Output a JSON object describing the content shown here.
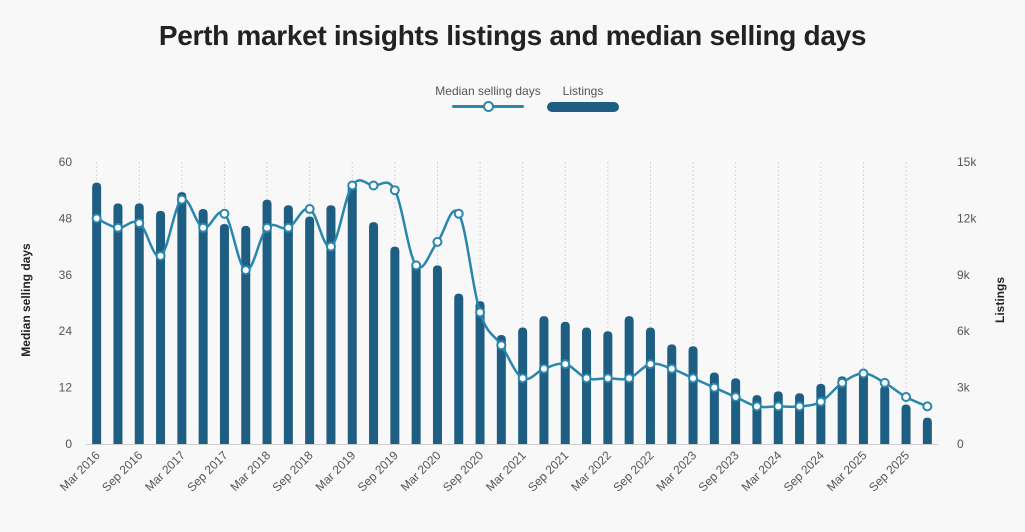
{
  "chart_data": {
    "type": "bar+line",
    "title": "Perth market insights listings and median selling days",
    "legend": [
      {
        "name": "Median selling days",
        "symbol": "line",
        "color": "#2a86ac"
      },
      {
        "name": "Listings",
        "symbol": "bar",
        "color": "#1d5e82"
      }
    ],
    "y_left": {
      "label": "Median selling days",
      "min": 0,
      "max": 60,
      "ticks": [
        "0",
        "12",
        "24",
        "36",
        "48",
        "60"
      ]
    },
    "y_right": {
      "label": "Listings",
      "min": 0,
      "max": 15000,
      "ticks": [
        "0",
        "3k",
        "6k",
        "9k",
        "12k",
        "15k"
      ]
    },
    "x_tick_labels": [
      "Mar 2016",
      "Sep 2016",
      "Mar 2017",
      "Sep 2017",
      "Mar 2018",
      "Sep 2018",
      "Mar 2019",
      "Sep 2019",
      "Mar 2020",
      "Sep 2020",
      "Mar 2021",
      "Sep 2021",
      "Mar 2022",
      "Sep 2022",
      "Mar 2023",
      "Sep 2023",
      "Mar 2024",
      "Sep 2024",
      "Mar 2025",
      "Sep 2025"
    ],
    "categories": [
      "Mar 2016",
      "Jun 2016",
      "Sep 2016",
      "Dec 2016",
      "Mar 2017",
      "Jun 2017",
      "Sep 2017",
      "Dec 2017",
      "Mar 2018",
      "Jun 2018",
      "Sep 2018",
      "Dec 2018",
      "Mar 2019",
      "Jun 2019",
      "Sep 2019",
      "Dec 2019",
      "Mar 2020",
      "Jun 2020",
      "Sep 2020",
      "Dec 2020",
      "Mar 2021",
      "Jun 2021",
      "Sep 2021",
      "Dec 2021",
      "Mar 2022",
      "Jun 2022",
      "Sep 2022",
      "Dec 2022",
      "Mar 2023",
      "Jun 2023",
      "Sep 2023",
      "Dec 2023",
      "Mar 2024",
      "Jun 2024",
      "Sep 2024",
      "Dec 2024",
      "Mar 2025",
      "Jun 2025",
      "Sep 2025",
      "Dec 2025"
    ],
    "series": [
      {
        "name": "Listings",
        "type": "bar",
        "axis": "right",
        "values": [
          13900,
          12800,
          12800,
          12400,
          13400,
          12500,
          11700,
          11600,
          13000,
          12700,
          12100,
          12700,
          13800,
          11800,
          10500,
          9600,
          9500,
          8000,
          7600,
          5800,
          6200,
          6800,
          6500,
          6200,
          6000,
          6800,
          6200,
          5300,
          5200,
          3800,
          3500,
          2600,
          2800,
          2700,
          3200,
          3600,
          4000,
          3100,
          2100,
          1400
        ]
      },
      {
        "name": "Median selling days",
        "type": "line",
        "axis": "left",
        "values": [
          48,
          46,
          47,
          40,
          52,
          46,
          49,
          37,
          46,
          46,
          50,
          42,
          55,
          55,
          54,
          38,
          43,
          49,
          28,
          21,
          14,
          16,
          17,
          14,
          14,
          14,
          17,
          16,
          14,
          12,
          10,
          8,
          8,
          8,
          9,
          13,
          15,
          13,
          10,
          8
        ]
      }
    ]
  }
}
